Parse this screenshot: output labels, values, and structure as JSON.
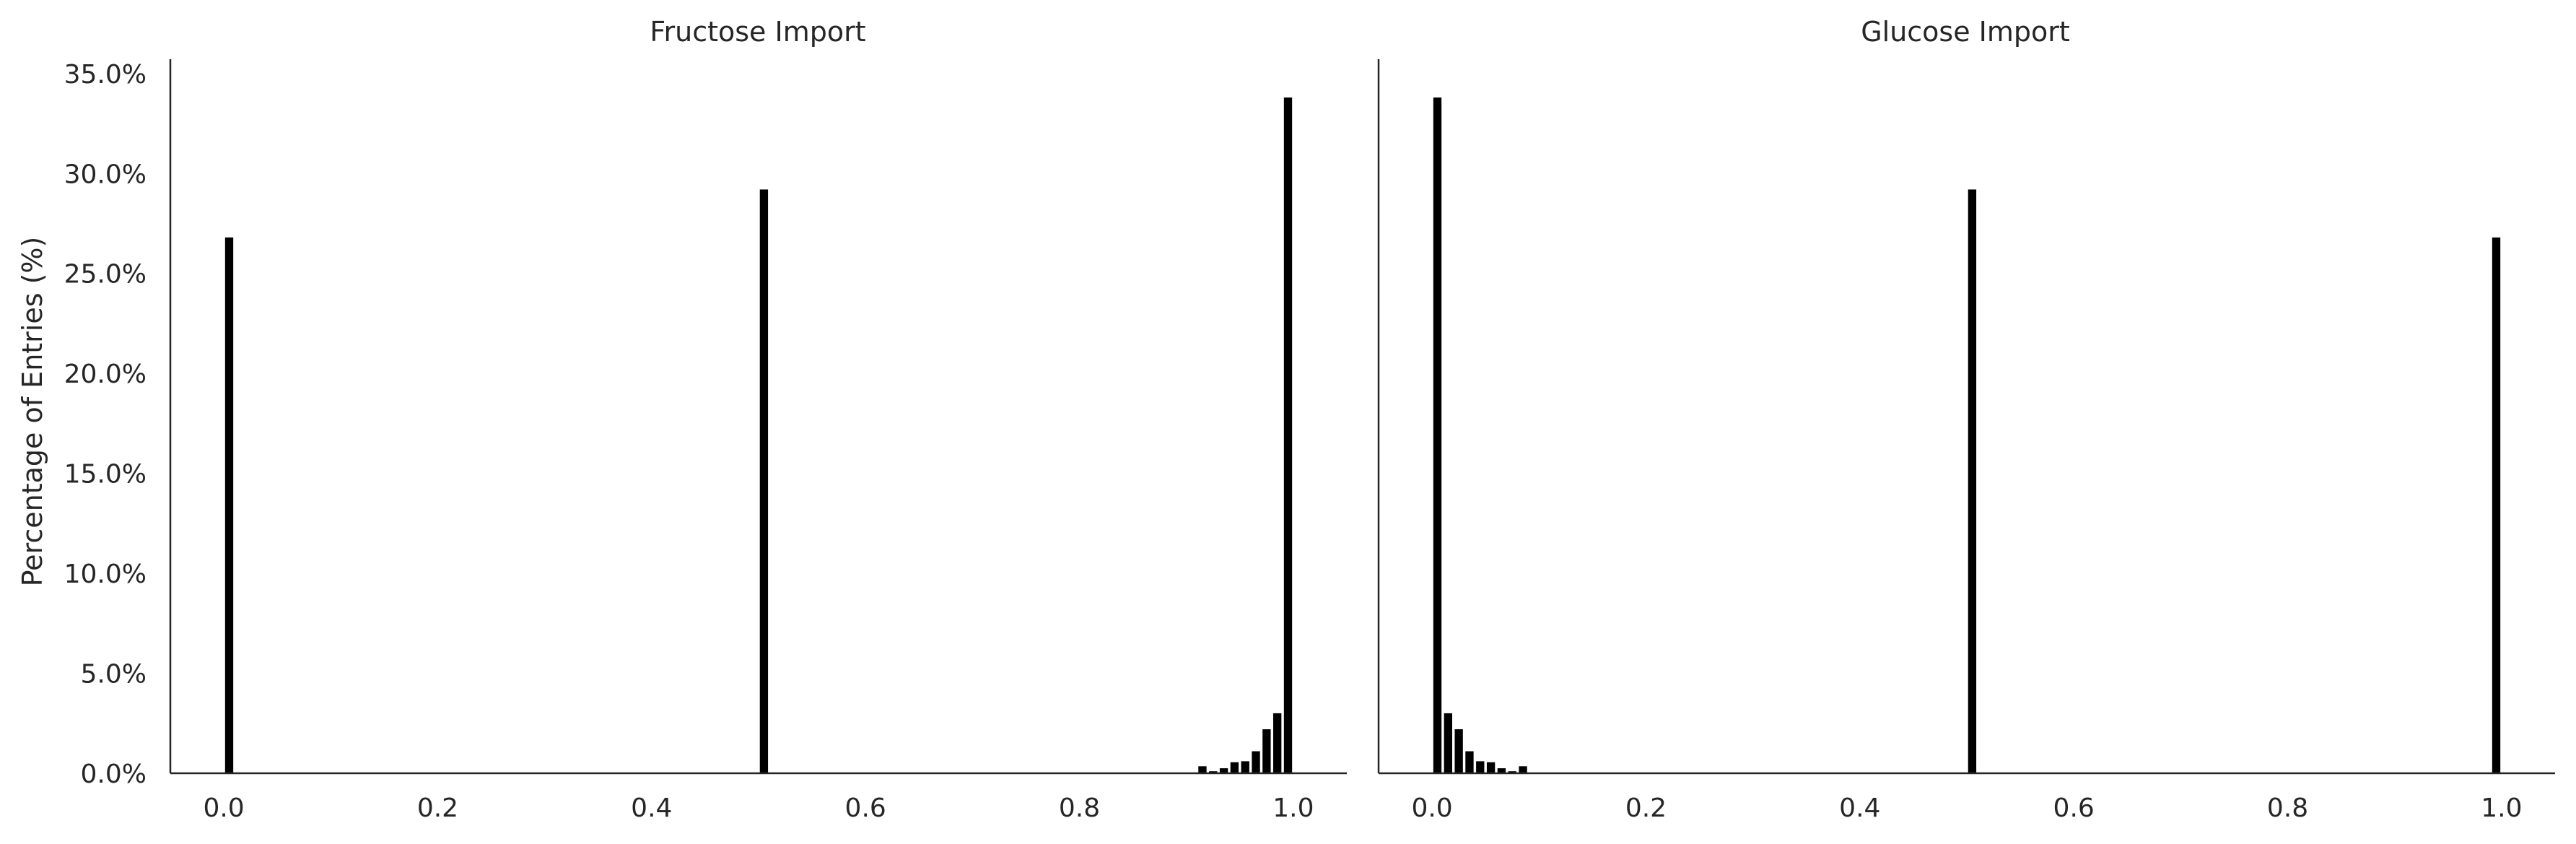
{
  "chart_data": [
    {
      "type": "bar",
      "title": "Fructose Import",
      "xlabel": "",
      "ylabel": "Percentage of Entries (%)",
      "xlim": [
        -0.05,
        1.05
      ],
      "ylim": [
        0,
        35.5
      ],
      "xticks": [
        "0.0",
        "0.2",
        "0.4",
        "0.6",
        "0.8",
        "1.0"
      ],
      "yticks": [
        "0.0%",
        "5.0%",
        "10.0%",
        "15.0%",
        "20.0%",
        "25.0%",
        "30.0%",
        "35.0%"
      ],
      "bar_width": 0.009,
      "grid": false,
      "bar_color": "#000000",
      "x": [
        0.005,
        0.505,
        0.915,
        0.925,
        0.935,
        0.945,
        0.955,
        0.965,
        0.975,
        0.985,
        0.995
      ],
      "values": [
        26.8,
        29.2,
        0.35,
        0.1,
        0.25,
        0.55,
        0.6,
        1.1,
        2.2,
        3.0,
        33.8
      ]
    },
    {
      "type": "bar",
      "title": "Glucose Import",
      "xlabel": "",
      "ylabel": "",
      "xlim": [
        -0.05,
        1.05
      ],
      "ylim": [
        0,
        35.5
      ],
      "xticks": [
        "0.0",
        "0.2",
        "0.4",
        "0.6",
        "0.8",
        "1.0"
      ],
      "yticks": [],
      "bar_width": 0.009,
      "grid": false,
      "bar_color": "#000000",
      "x": [
        0.005,
        0.015,
        0.025,
        0.035,
        0.045,
        0.055,
        0.065,
        0.075,
        0.085,
        0.505,
        0.995
      ],
      "values": [
        33.8,
        3.0,
        2.2,
        1.1,
        0.6,
        0.55,
        0.25,
        0.1,
        0.35,
        29.2,
        26.8
      ]
    }
  ]
}
